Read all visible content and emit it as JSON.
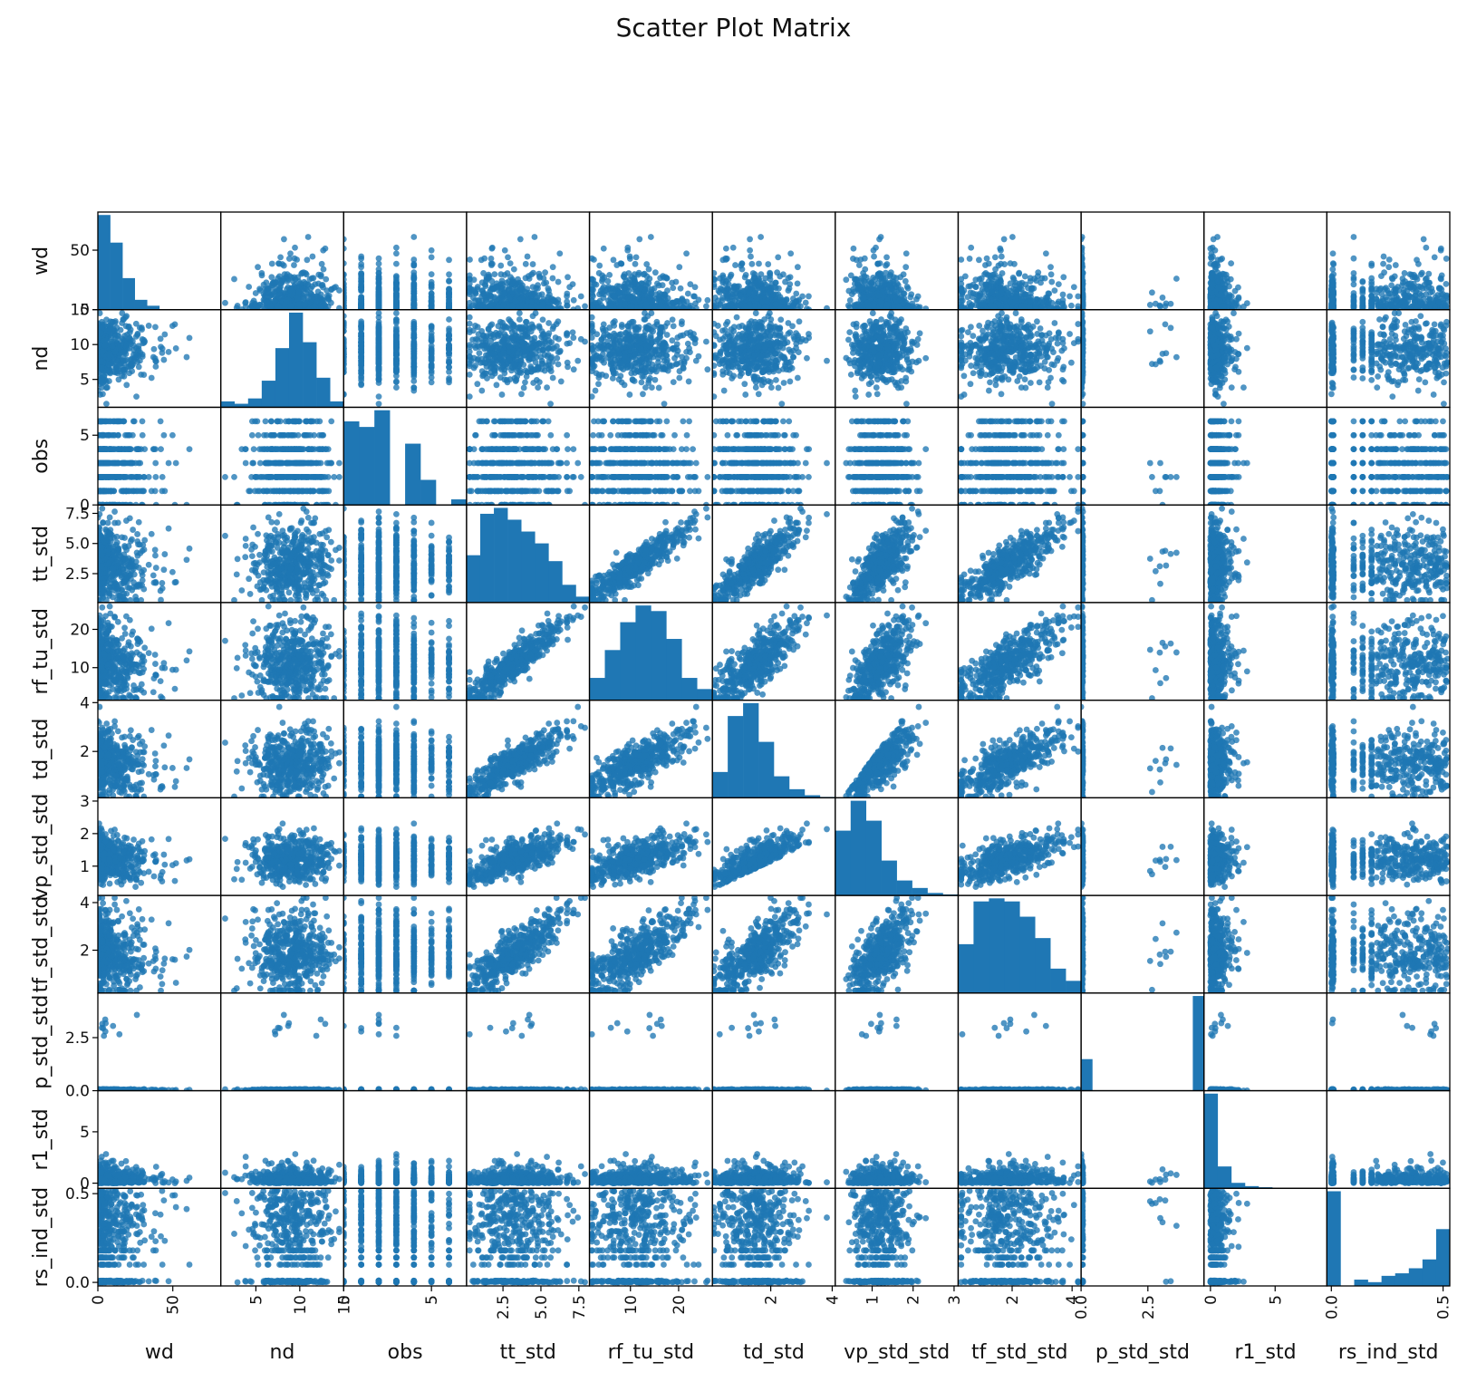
{
  "title": "Scatter Plot Matrix",
  "colors": {
    "marker": "#1f77b4",
    "axis": "#000000"
  },
  "chart_data": {
    "type": "scatter",
    "subtype": "scatter_matrix",
    "title": "Scatter Plot Matrix",
    "diagonal": "histogram",
    "grid": false,
    "variables": [
      {
        "name": "wd",
        "range": [
          0,
          82
        ],
        "ticks": [
          0,
          50
        ],
        "tick_labels": [
          "0",
          "50"
        ],
        "ytick_labels": [
          "0",
          "50"
        ],
        "yticks": [
          0,
          50
        ],
        "dist": "exp",
        "mean": 12,
        "hist": [
          24,
          17,
          8,
          2.5,
          1,
          0,
          0,
          0,
          0,
          0
        ]
      },
      {
        "name": "nd",
        "range": [
          1,
          15
        ],
        "ticks": [
          5,
          10,
          15
        ],
        "tick_labels": [
          "5",
          "10",
          "15"
        ],
        "yticks": [
          5,
          10,
          15
        ],
        "ytick_labels": [
          "5",
          "10",
          "15"
        ],
        "dist": "normal",
        "mean": 9,
        "sd": 2.2,
        "hist": [
          1,
          0.6,
          1.5,
          4.5,
          10,
          16,
          11,
          5,
          1
        ]
      },
      {
        "name": "obs",
        "range": [
          0,
          7
        ],
        "ticks": [
          0,
          5
        ],
        "tick_labels": [
          "0",
          "5"
        ],
        "yticks": [
          0,
          5
        ],
        "ytick_labels": [
          "0",
          "5"
        ],
        "dist": "discrete",
        "values": [
          0,
          1,
          2,
          3,
          4,
          5,
          6
        ],
        "hist": [
          15,
          14,
          17,
          0,
          11,
          4.5,
          0,
          1
        ]
      },
      {
        "name": "tt_std",
        "range": [
          0.1,
          8.2
        ],
        "ticks": [
          2.5,
          5.0,
          7.5
        ],
        "tick_labels": [
          "2.5",
          "5.0",
          "7.5"
        ],
        "yticks": [
          2.5,
          5.0,
          7.5
        ],
        "ytick_labels": [
          "2.5",
          "5.0",
          "7.5"
        ],
        "dist": "gamma",
        "mean": 3.2,
        "sd": 1.6,
        "hist": [
          8,
          15,
          16,
          14,
          12,
          10,
          7,
          3,
          1
        ]
      },
      {
        "name": "rf_tu_std",
        "range": [
          1.5,
          27
        ],
        "ticks": [
          10,
          20
        ],
        "tick_labels": [
          "10",
          "20"
        ],
        "yticks": [
          10,
          20
        ],
        "ytick_labels": [
          "10",
          "20"
        ],
        "dist": "linked",
        "base": 3,
        "slope": 3,
        "offset": 1.5,
        "noise": 2.2,
        "hist": [
          4,
          9,
          14,
          17,
          16,
          11,
          4,
          2
        ]
      },
      {
        "name": "td_std",
        "range": [
          0.1,
          4.1
        ],
        "ticks": [
          2,
          4
        ],
        "tick_labels": [
          "2",
          "4"
        ],
        "yticks": [
          2,
          4
        ],
        "ytick_labels": [
          "2",
          "4"
        ],
        "dist": "gamma",
        "mean": 1.5,
        "sd": 0.6,
        "hist": [
          6,
          19,
          22,
          13,
          5,
          2,
          0.6,
          0.2
        ]
      },
      {
        "name": "vp_std_std",
        "range": [
          0.1,
          3.1
        ],
        "ticks": [
          1,
          2,
          3
        ],
        "tick_labels": [
          "1",
          "2",
          "3"
        ],
        "yticks": [
          1,
          2,
          3
        ],
        "ytick_labels": [
          "1",
          "2",
          "3"
        ],
        "dist": "gamma",
        "mean": 0.9,
        "sd": 0.55,
        "hist": [
          13,
          19,
          15,
          7,
          3,
          1.5,
          0.5,
          0.2
        ]
      },
      {
        "name": "tf_std_std",
        "range": [
          0.2,
          4.3
        ],
        "ticks": [
          2,
          4
        ],
        "tick_labels": [
          "2",
          "4"
        ],
        "yticks": [
          2,
          4
        ],
        "ytick_labels": [
          "2",
          "4"
        ],
        "dist": "linked",
        "base": 3,
        "slope": 0.45,
        "offset": 0.4,
        "noise": 0.45,
        "hist": [
          8,
          15,
          15.5,
          15,
          12.5,
          9,
          4,
          2
        ]
      },
      {
        "name": "p_std_std",
        "range": [
          0,
          4.6
        ],
        "ticks": [
          0.0,
          2.5
        ],
        "tick_labels": [
          "0.0",
          "2.5"
        ],
        "yticks": [
          0.0,
          2.5
        ],
        "ytick_labels": [
          "0.0",
          "2.5"
        ],
        "dist": "bimodal",
        "hist": [
          6,
          0,
          0,
          0,
          0,
          0,
          0,
          0,
          0,
          0,
          18
        ]
      },
      {
        "name": "r1_std",
        "range": [
          -0.5,
          9
        ],
        "ticks": [
          0,
          5
        ],
        "tick_labels": [
          "0",
          "5"
        ],
        "yticks": [
          0,
          5
        ],
        "ytick_labels": [
          "0",
          "5"
        ],
        "dist": "exp",
        "mean": 0.5,
        "hist": [
          26,
          6,
          1.5,
          0.6,
          0.3,
          0,
          0,
          0,
          0
        ]
      },
      {
        "name": "rs_ind_std",
        "range": [
          -0.02,
          0.53
        ],
        "ticks": [
          0.0,
          0.5
        ],
        "tick_labels": [
          "0.0",
          "0.5"
        ],
        "yticks": [
          0.0,
          0.5
        ],
        "ytick_labels": [
          "0.0",
          "0.5"
        ],
        "dist": "mixed",
        "hist": [
          15,
          0,
          1,
          0.6,
          1.6,
          2,
          2.8,
          4.2,
          9
        ]
      }
    ]
  }
}
